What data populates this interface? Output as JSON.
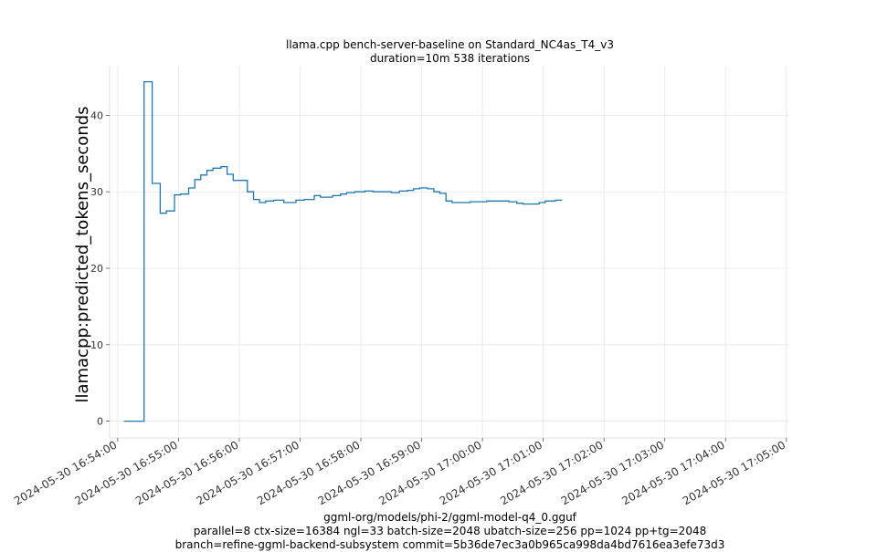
{
  "chart_data": {
    "type": "line",
    "title": "llama.cpp bench-server-baseline on Standard_NC4as_T4_v3",
    "subtitle": "duration=10m 538 iterations",
    "ylabel": "llamacpp:predicted_tokens_seconds",
    "xlabel_lines": [
      "ggml-org/models/phi-2/ggml-model-q4_0.gguf",
      "parallel=8 ctx-size=16384 ngl=33 batch-size=2048 ubatch-size=256 pp=1024 pp+tg=2048",
      "branch=refine-ggml-backend-subsystem commit=5b36de7ec3a0b965ca998da4bd7616ea3efe73d3"
    ],
    "x_ticks": [
      "2024-05-30 16:54:00",
      "2024-05-30 16:55:00",
      "2024-05-30 16:56:00",
      "2024-05-30 16:57:00",
      "2024-05-30 16:58:00",
      "2024-05-30 16:59:00",
      "2024-05-30 17:00:00",
      "2024-05-30 17:01:00",
      "2024-05-30 17:02:00",
      "2024-05-30 17:03:00",
      "2024-05-30 17:04:00",
      "2024-05-30 17:05:00"
    ],
    "y_ticks": [
      0,
      10,
      20,
      30,
      40
    ],
    "xlim": [
      "2024-05-30 16:53:52",
      "2024-05-30 17:05:02"
    ],
    "ylim": [
      -2.2,
      46.5
    ],
    "grid": true,
    "line_color": "#1f77b4",
    "step": true,
    "points": [
      [
        "2024-05-30 16:54:06",
        0.0
      ],
      [
        "2024-05-30 16:54:26",
        0.0
      ],
      [
        "2024-05-30 16:54:26",
        44.4
      ],
      [
        "2024-05-30 16:54:34",
        44.4
      ],
      [
        "2024-05-30 16:54:34",
        31.1
      ],
      [
        "2024-05-30 16:54:42",
        31.1
      ],
      [
        "2024-05-30 16:54:42",
        27.2
      ],
      [
        "2024-05-30 16:54:48",
        27.2
      ],
      [
        "2024-05-30 16:54:48",
        27.5
      ],
      [
        "2024-05-30 16:54:56",
        27.5
      ],
      [
        "2024-05-30 16:54:56",
        29.6
      ],
      [
        "2024-05-30 16:55:02",
        29.6
      ],
      [
        "2024-05-30 16:55:02",
        29.7
      ],
      [
        "2024-05-30 16:55:10",
        29.7
      ],
      [
        "2024-05-30 16:55:10",
        30.5
      ],
      [
        "2024-05-30 16:55:16",
        30.5
      ],
      [
        "2024-05-30 16:55:16",
        31.6
      ],
      [
        "2024-05-30 16:55:22",
        31.6
      ],
      [
        "2024-05-30 16:55:22",
        32.2
      ],
      [
        "2024-05-30 16:55:28",
        32.2
      ],
      [
        "2024-05-30 16:55:28",
        32.8
      ],
      [
        "2024-05-30 16:55:34",
        32.8
      ],
      [
        "2024-05-30 16:55:34",
        33.1
      ],
      [
        "2024-05-30 16:55:42",
        33.1
      ],
      [
        "2024-05-30 16:55:42",
        33.3
      ],
      [
        "2024-05-30 16:55:48",
        33.3
      ],
      [
        "2024-05-30 16:55:48",
        32.3
      ],
      [
        "2024-05-30 16:55:54",
        32.3
      ],
      [
        "2024-05-30 16:55:54",
        31.5
      ],
      [
        "2024-05-30 16:56:08",
        31.5
      ],
      [
        "2024-05-30 16:56:08",
        30.0
      ],
      [
        "2024-05-30 16:56:14",
        30.0
      ],
      [
        "2024-05-30 16:56:14",
        29.0
      ],
      [
        "2024-05-30 16:56:20",
        29.0
      ],
      [
        "2024-05-30 16:56:20",
        28.6
      ],
      [
        "2024-05-30 16:56:26",
        28.6
      ],
      [
        "2024-05-30 16:56:26",
        28.8
      ],
      [
        "2024-05-30 16:56:34",
        28.8
      ],
      [
        "2024-05-30 16:56:34",
        28.9
      ],
      [
        "2024-05-30 16:56:44",
        28.9
      ],
      [
        "2024-05-30 16:56:44",
        28.6
      ],
      [
        "2024-05-30 16:56:56",
        28.6
      ],
      [
        "2024-05-30 16:56:56",
        28.9
      ],
      [
        "2024-05-30 16:57:04",
        28.9
      ],
      [
        "2024-05-30 16:57:04",
        29.0
      ],
      [
        "2024-05-30 16:57:14",
        29.0
      ],
      [
        "2024-05-30 16:57:14",
        29.5
      ],
      [
        "2024-05-30 16:57:20",
        29.5
      ],
      [
        "2024-05-30 16:57:20",
        29.3
      ],
      [
        "2024-05-30 16:57:32",
        29.3
      ],
      [
        "2024-05-30 16:57:32",
        29.5
      ],
      [
        "2024-05-30 16:57:40",
        29.5
      ],
      [
        "2024-05-30 16:57:40",
        29.7
      ],
      [
        "2024-05-30 16:57:46",
        29.7
      ],
      [
        "2024-05-30 16:57:46",
        29.9
      ],
      [
        "2024-05-30 16:57:54",
        29.9
      ],
      [
        "2024-05-30 16:57:54",
        30.0
      ],
      [
        "2024-05-30 16:58:04",
        30.0
      ],
      [
        "2024-05-30 16:58:04",
        30.1
      ],
      [
        "2024-05-30 16:58:12",
        30.1
      ],
      [
        "2024-05-30 16:58:12",
        30.0
      ],
      [
        "2024-05-30 16:58:30",
        30.0
      ],
      [
        "2024-05-30 16:58:30",
        29.9
      ],
      [
        "2024-05-30 16:58:38",
        29.9
      ],
      [
        "2024-05-30 16:58:38",
        30.1
      ],
      [
        "2024-05-30 16:58:46",
        30.1
      ],
      [
        "2024-05-30 16:58:46",
        30.2
      ],
      [
        "2024-05-30 16:58:52",
        30.2
      ],
      [
        "2024-05-30 16:58:52",
        30.4
      ],
      [
        "2024-05-30 16:58:58",
        30.4
      ],
      [
        "2024-05-30 16:58:58",
        30.5
      ],
      [
        "2024-05-30 16:59:06",
        30.5
      ],
      [
        "2024-05-30 16:59:06",
        30.4
      ],
      [
        "2024-05-30 16:59:12",
        30.4
      ],
      [
        "2024-05-30 16:59:12",
        30.0
      ],
      [
        "2024-05-30 16:59:18",
        30.0
      ],
      [
        "2024-05-30 16:59:18",
        29.8
      ],
      [
        "2024-05-30 16:59:24",
        29.8
      ],
      [
        "2024-05-30 16:59:24",
        28.8
      ],
      [
        "2024-05-30 16:59:30",
        28.8
      ],
      [
        "2024-05-30 16:59:30",
        28.6
      ],
      [
        "2024-05-30 16:59:48",
        28.6
      ],
      [
        "2024-05-30 16:59:48",
        28.7
      ],
      [
        "2024-05-30 17:00:04",
        28.7
      ],
      [
        "2024-05-30 17:00:04",
        28.8
      ],
      [
        "2024-05-30 17:00:26",
        28.8
      ],
      [
        "2024-05-30 17:00:26",
        28.7
      ],
      [
        "2024-05-30 17:00:34",
        28.7
      ],
      [
        "2024-05-30 17:00:34",
        28.5
      ],
      [
        "2024-05-30 17:00:40",
        28.5
      ],
      [
        "2024-05-30 17:00:40",
        28.4
      ],
      [
        "2024-05-30 17:00:56",
        28.4
      ],
      [
        "2024-05-30 17:00:56",
        28.6
      ],
      [
        "2024-05-30 17:01:02",
        28.6
      ],
      [
        "2024-05-30 17:01:02",
        28.8
      ],
      [
        "2024-05-30 17:01:12",
        28.8
      ],
      [
        "2024-05-30 17:01:12",
        28.9
      ],
      [
        "2024-05-30 17:01:18",
        28.9
      ],
      [
        "2024-05-30 17:01:18",
        29.0
      ]
    ]
  }
}
